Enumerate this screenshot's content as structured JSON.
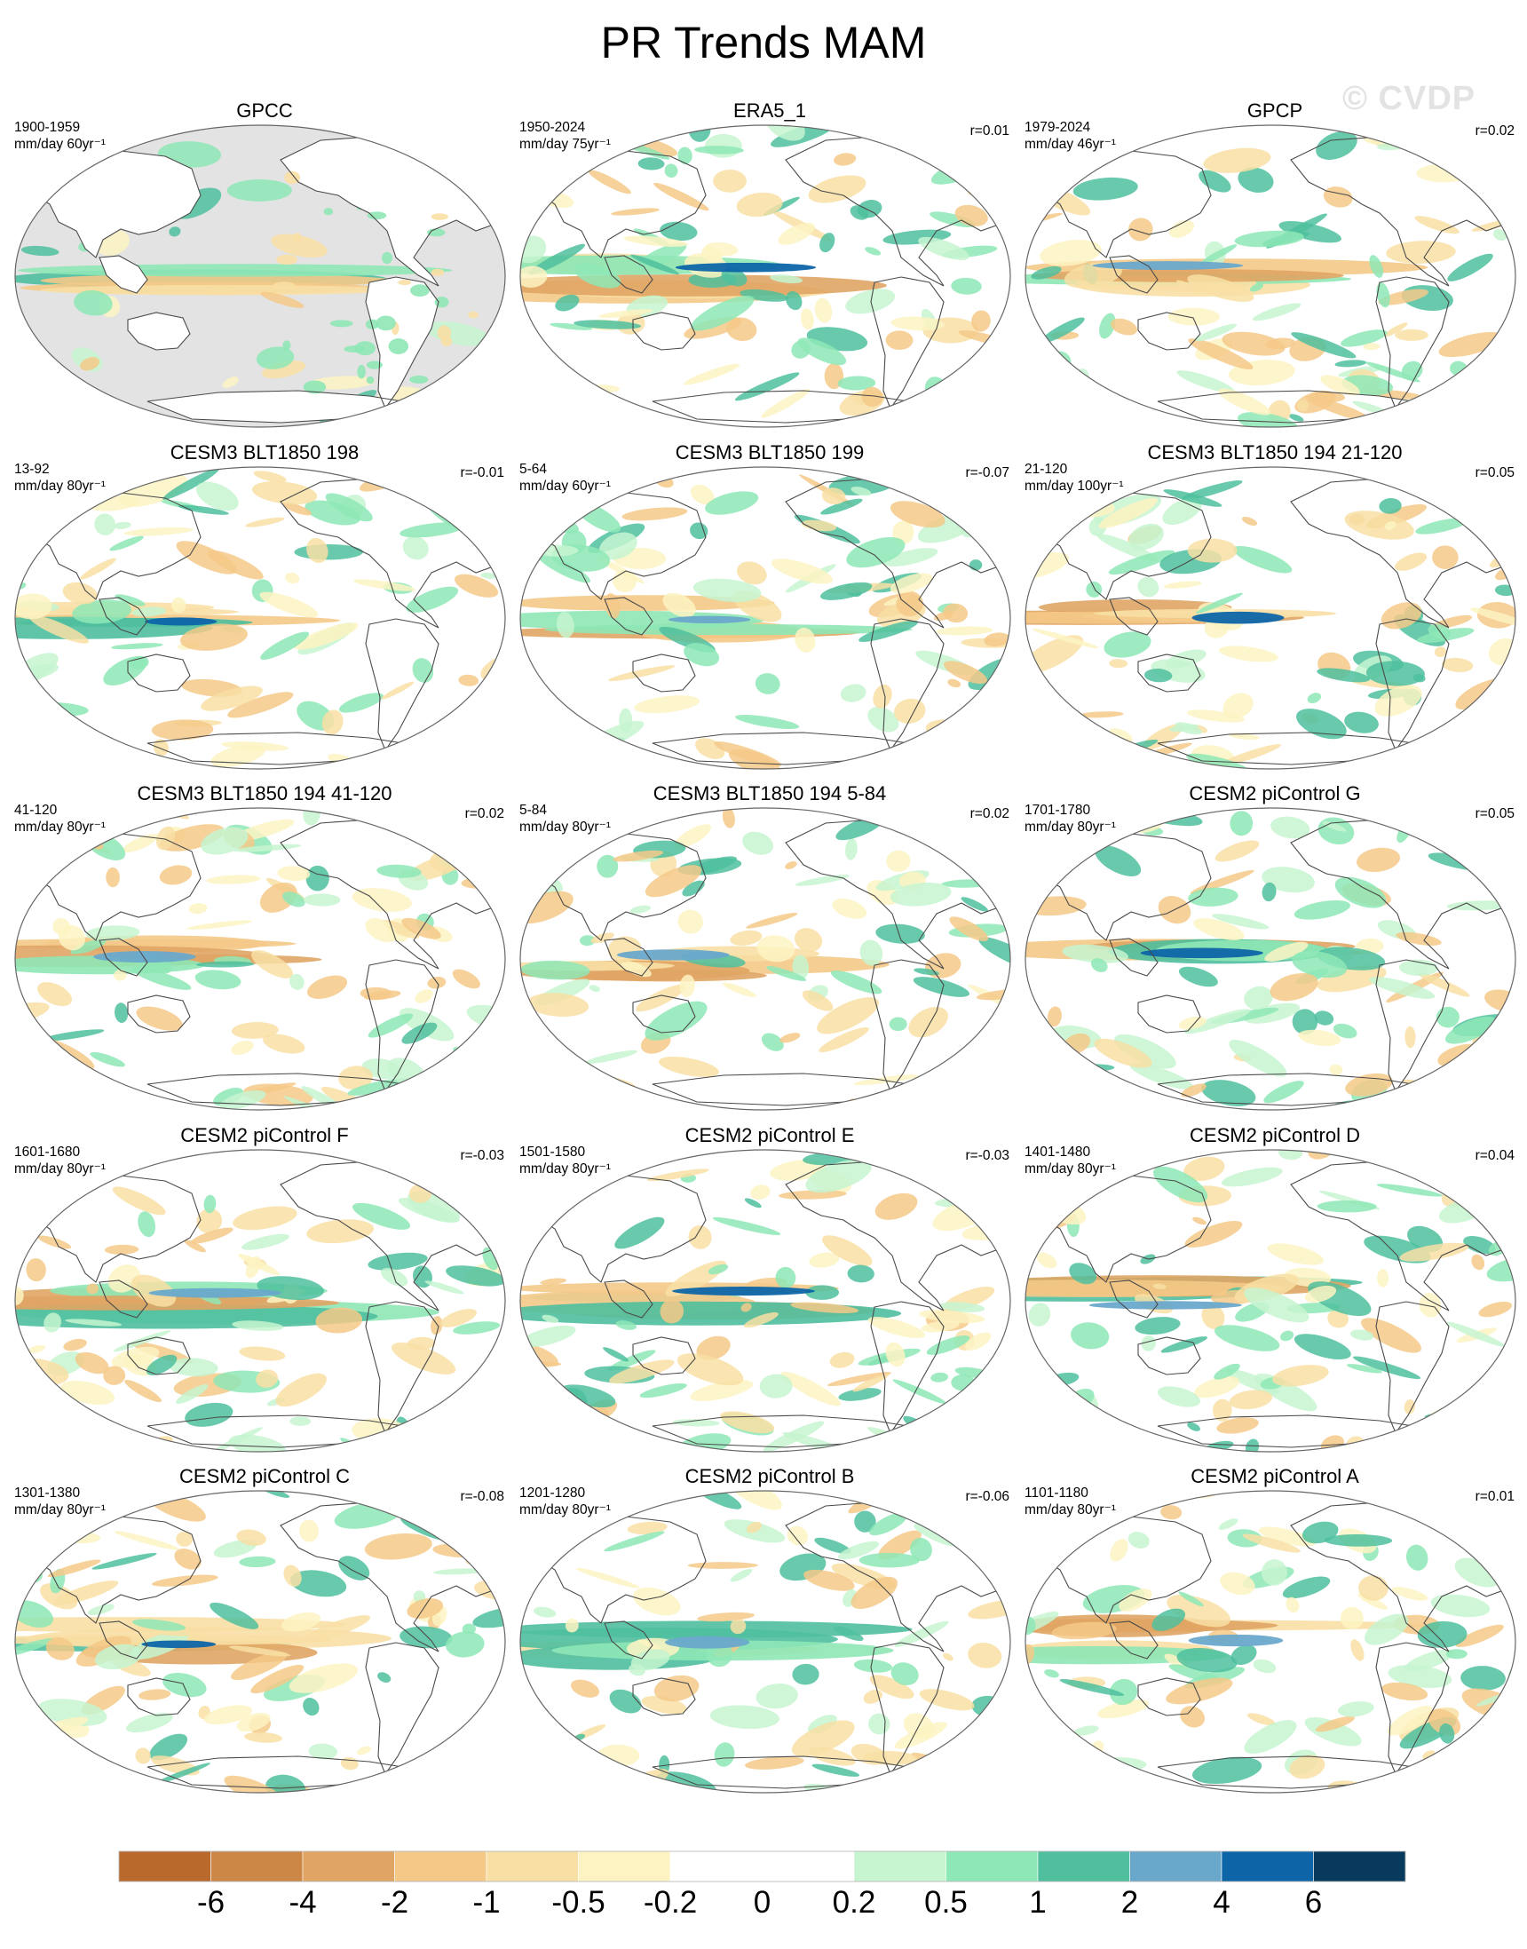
{
  "title": "PR Trends MAM",
  "watermark": "© CVDP",
  "panels": [
    {
      "title": "GPCC",
      "period": "1900-1959",
      "units": "mm/day 60yr⁻¹",
      "corr": "",
      "landonly": true,
      "seed": 3
    },
    {
      "title": "ERA5_1",
      "period": "1950-2024",
      "units": "mm/day 75yr⁻¹",
      "corr": "r=0.01",
      "landonly": false,
      "seed": 11
    },
    {
      "title": "GPCP",
      "period": "1979-2024",
      "units": "mm/day 46yr⁻¹",
      "corr": "r=0.02",
      "landonly": false,
      "seed": 19
    },
    {
      "title": "CESM3 BLT1850 198",
      "period": "13-92",
      "units": "mm/day 80yr⁻¹",
      "corr": "r=-0.01",
      "landonly": false,
      "seed": 27
    },
    {
      "title": "CESM3 BLT1850 199",
      "period": "5-64",
      "units": "mm/day 60yr⁻¹",
      "corr": "r=-0.07",
      "landonly": false,
      "seed": 35
    },
    {
      "title": "CESM3 BLT1850 194 21-120",
      "period": "21-120",
      "units": "mm/day 100yr⁻¹",
      "corr": "r=0.05",
      "landonly": false,
      "seed": 43
    },
    {
      "title": "CESM3 BLT1850 194 41-120",
      "period": "41-120",
      "units": "mm/day 80yr⁻¹",
      "corr": "r=0.02",
      "landonly": false,
      "seed": 51
    },
    {
      "title": "CESM3 BLT1850 194 5-84",
      "period": "5-84",
      "units": "mm/day 80yr⁻¹",
      "corr": "r=0.02",
      "landonly": false,
      "seed": 59
    },
    {
      "title": "CESM2 piControl G",
      "period": "1701-1780",
      "units": "mm/day 80yr⁻¹",
      "corr": "r=0.05",
      "landonly": false,
      "seed": 67
    },
    {
      "title": "CESM2 piControl F",
      "period": "1601-1680",
      "units": "mm/day 80yr⁻¹",
      "corr": "r=-0.03",
      "landonly": false,
      "seed": 75
    },
    {
      "title": "CESM2 piControl E",
      "period": "1501-1580",
      "units": "mm/day 80yr⁻¹",
      "corr": "r=-0.03",
      "landonly": false,
      "seed": 83
    },
    {
      "title": "CESM2 piControl D",
      "period": "1401-1480",
      "units": "mm/day 80yr⁻¹",
      "corr": "r=0.04",
      "landonly": false,
      "seed": 91
    },
    {
      "title": "CESM2 piControl C",
      "period": "1301-1380",
      "units": "mm/day 80yr⁻¹",
      "corr": "r=-0.08",
      "landonly": false,
      "seed": 99
    },
    {
      "title": "CESM2 piControl B",
      "period": "1201-1280",
      "units": "mm/day 80yr⁻¹",
      "corr": "r=-0.06",
      "landonly": false,
      "seed": 107
    },
    {
      "title": "CESM2 piControl A",
      "period": "1101-1180",
      "units": "mm/day 80yr⁻¹",
      "corr": "r=0.01",
      "landonly": false,
      "seed": 115
    }
  ],
  "colorbar": {
    "colors": [
      "#b8692b",
      "#cc8646",
      "#e0a564",
      "#f4c988",
      "#f8dfa4",
      "#fdf3c2",
      "#ffffff",
      "#ffffff",
      "#c6f5d0",
      "#8ee7b6",
      "#4fbf9e",
      "#6aa8cb",
      "#0d65a8",
      "#073a5c"
    ],
    "labels": [
      "-6",
      "-4",
      "-2",
      "-1",
      "-0.5",
      "-0.2",
      "0",
      "0.2",
      "0.5",
      "1",
      "2",
      "4",
      "6"
    ]
  },
  "land_mask_color": "#e3e3e3",
  "coast_color": "#4a4a4a"
}
